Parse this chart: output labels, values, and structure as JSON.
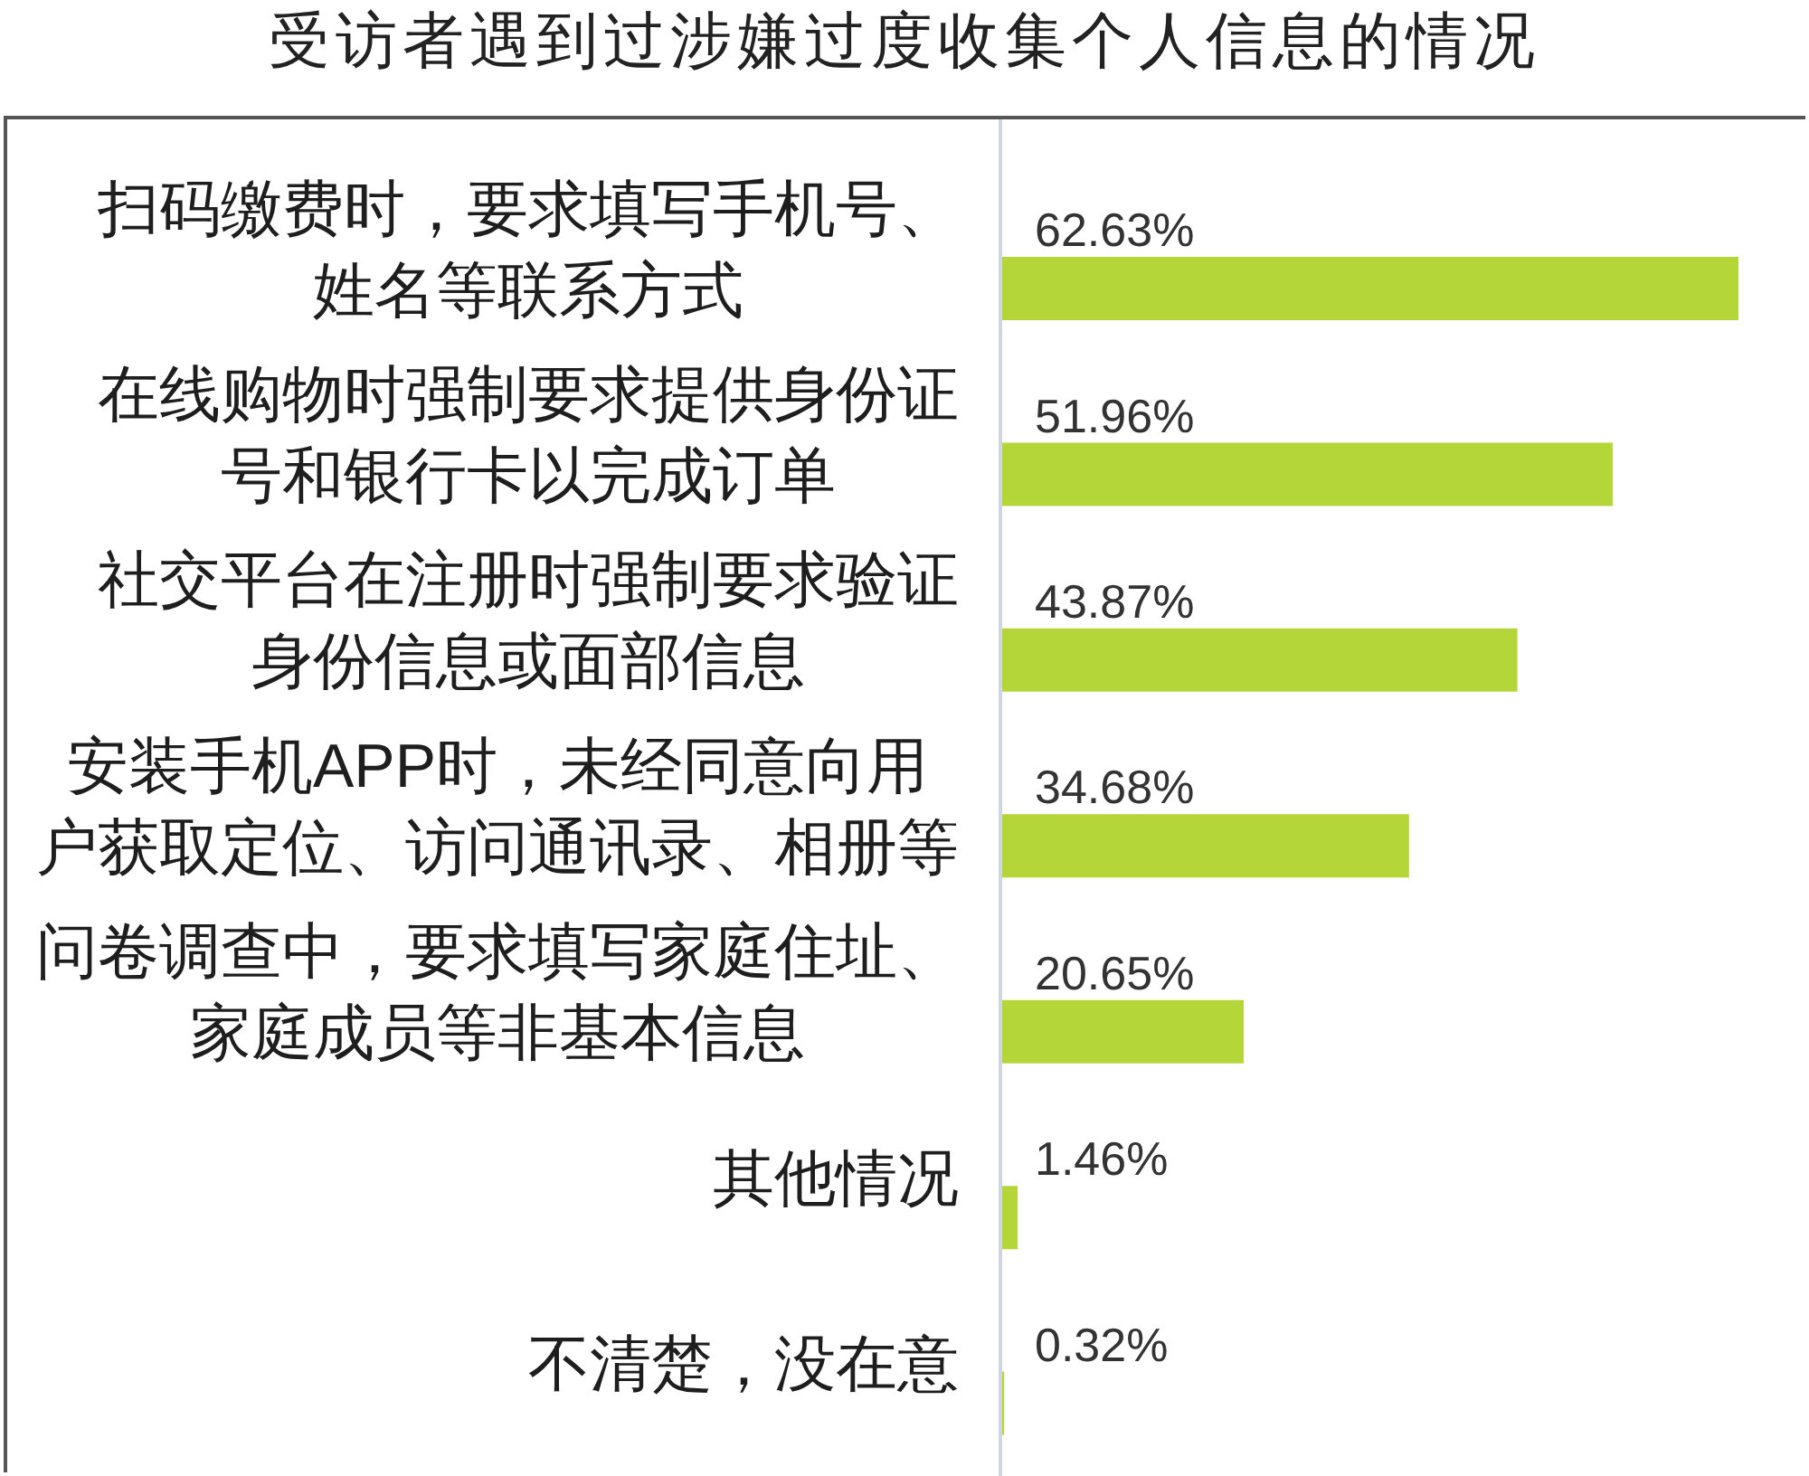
{
  "chart_data": {
    "type": "bar",
    "orientation": "horizontal",
    "title": "受访者遇到过涉嫌过度收集个人信息的情况",
    "categories": [
      "扫码缴费时，要求填写手机号、姓名等联系方式",
      "在线购物时强制要求提供身份证号和银行卡以完成订单",
      "社交平台在注册时强制要求验证身份信息或面部信息",
      "安装手机APP时，未经同意向用户获取定位、访问通讯录、相册等",
      "问卷调查中，要求填写家庭住址、家庭成员等非基本信息",
      "其他情况",
      "不清楚，没在意"
    ],
    "values": [
      62.63,
      51.96,
      43.87,
      34.68,
      20.65,
      1.46,
      0.32
    ],
    "value_labels": [
      "62.63%",
      "51.96%",
      "43.87%",
      "34.68%",
      "20.65%",
      "1.46%",
      "0.32%"
    ],
    "color": "#b4d638",
    "tick_labels": "y"
  }
}
